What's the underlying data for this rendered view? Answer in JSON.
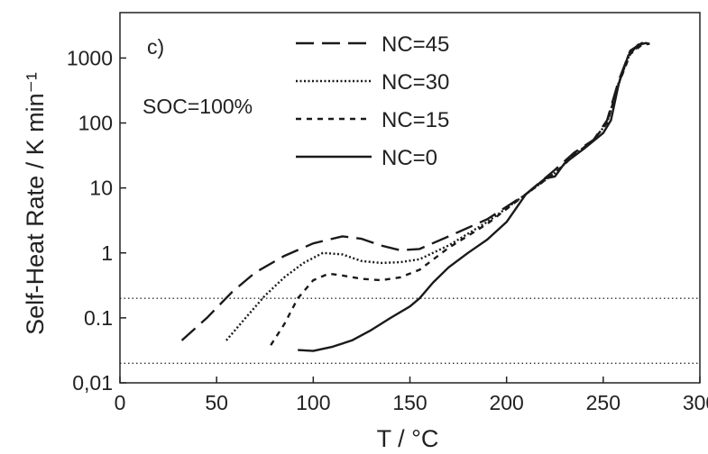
{
  "chart_data": {
    "type": "line",
    "panel_label": "c)",
    "annotation": "SOC=100%",
    "xlabel": "T / °C",
    "ylabel": "Self-Heat Rate / K min⁻¹",
    "xlim": [
      0,
      300
    ],
    "ylim": [
      0.01,
      5000
    ],
    "yscale": "log",
    "xticks": [
      0,
      50,
      100,
      150,
      200,
      250,
      300
    ],
    "xtick_labels": [
      "0",
      "50",
      "100",
      "150",
      "200",
      "250",
      "300"
    ],
    "yticks": [
      0.01,
      0.1,
      1,
      10,
      100,
      1000
    ],
    "ytick_labels": [
      "0,01",
      "0.1",
      "1",
      "10",
      "100",
      "1000"
    ],
    "reference_lines": [
      0.2,
      0.02
    ],
    "legend_position": "top-left",
    "series": [
      {
        "name": "NC=45",
        "dash": "dashed",
        "points": [
          [
            32,
            0.045
          ],
          [
            45,
            0.1
          ],
          [
            58,
            0.25
          ],
          [
            70,
            0.5
          ],
          [
            85,
            0.9
          ],
          [
            100,
            1.4
          ],
          [
            115,
            1.8
          ],
          [
            125,
            1.65
          ],
          [
            135,
            1.3
          ],
          [
            145,
            1.1
          ],
          [
            155,
            1.15
          ],
          [
            170,
            1.8
          ],
          [
            190,
            3.3
          ],
          [
            210,
            8
          ],
          [
            225,
            19
          ],
          [
            235,
            35
          ],
          [
            245,
            55
          ],
          [
            252,
            110
          ],
          [
            258,
            450
          ],
          [
            264,
            1300
          ],
          [
            270,
            1700
          ],
          [
            274,
            1750
          ]
        ]
      },
      {
        "name": "NC=30",
        "dash": "dotted",
        "points": [
          [
            55,
            0.045
          ],
          [
            65,
            0.1
          ],
          [
            75,
            0.22
          ],
          [
            85,
            0.42
          ],
          [
            95,
            0.7
          ],
          [
            105,
            1.0
          ],
          [
            115,
            0.95
          ],
          [
            125,
            0.75
          ],
          [
            135,
            0.7
          ],
          [
            145,
            0.72
          ],
          [
            155,
            0.8
          ],
          [
            170,
            1.3
          ],
          [
            190,
            3.0
          ],
          [
            210,
            8
          ],
          [
            225,
            17
          ],
          [
            235,
            32
          ],
          [
            245,
            55
          ],
          [
            252,
            100
          ],
          [
            258,
            420
          ],
          [
            264,
            1200
          ],
          [
            270,
            1650
          ],
          [
            274,
            1700
          ]
        ]
      },
      {
        "name": "NC=15",
        "dash": "short-dashed",
        "points": [
          [
            78,
            0.038
          ],
          [
            85,
            0.08
          ],
          [
            92,
            0.2
          ],
          [
            100,
            0.38
          ],
          [
            108,
            0.48
          ],
          [
            115,
            0.45
          ],
          [
            125,
            0.4
          ],
          [
            135,
            0.38
          ],
          [
            145,
            0.42
          ],
          [
            155,
            0.55
          ],
          [
            170,
            1.2
          ],
          [
            190,
            2.8
          ],
          [
            210,
            8
          ],
          [
            225,
            17
          ],
          [
            235,
            32
          ],
          [
            245,
            55
          ],
          [
            252,
            100
          ],
          [
            258,
            400
          ],
          [
            264,
            1150
          ],
          [
            270,
            1600
          ],
          [
            274,
            1650
          ]
        ]
      },
      {
        "name": "NC=0",
        "dash": "solid",
        "points": [
          [
            92,
            0.032
          ],
          [
            100,
            0.031
          ],
          [
            110,
            0.036
          ],
          [
            120,
            0.045
          ],
          [
            130,
            0.065
          ],
          [
            140,
            0.1
          ],
          [
            150,
            0.15
          ],
          [
            155,
            0.2
          ],
          [
            162,
            0.35
          ],
          [
            170,
            0.6
          ],
          [
            180,
            1.0
          ],
          [
            190,
            1.6
          ],
          [
            200,
            3
          ],
          [
            210,
            8
          ],
          [
            220,
            14
          ],
          [
            225,
            15
          ],
          [
            230,
            24
          ],
          [
            240,
            40
          ],
          [
            250,
            70
          ],
          [
            254,
            110
          ],
          [
            258,
            400
          ],
          [
            263,
            1100
          ],
          [
            268,
            1600
          ],
          [
            272,
            1700
          ],
          [
            274,
            1650
          ]
        ]
      }
    ]
  }
}
